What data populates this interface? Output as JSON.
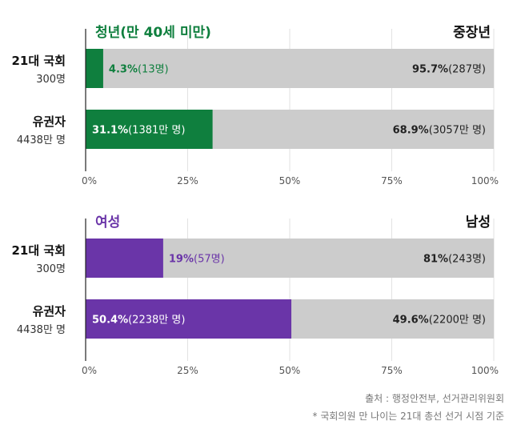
{
  "chart_data": [
    {
      "type": "bar",
      "orientation": "horizontal",
      "stacked": true,
      "colors": {
        "left": "#0f7f3e",
        "right": "#cccccc",
        "left_label": "#0f7f3e",
        "right_label": "#222222"
      },
      "series_names": [
        "청년(만 40세 미만)",
        "중장년"
      ],
      "categories": [
        {
          "title": "21대 국회",
          "sub": "300명",
          "left": {
            "value": 4.3,
            "pct_text": "4.3%",
            "count_text": "(13명)"
          },
          "right": {
            "value": 95.7,
            "pct_text": "95.7%",
            "count_text": "(287명)"
          }
        },
        {
          "title": "유권자",
          "sub": "4438만 명",
          "left": {
            "value": 31.1,
            "pct_text": "31.1%",
            "count_text": "(1381만 명)"
          },
          "right": {
            "value": 68.9,
            "pct_text": "68.9%",
            "count_text": "(3057만 명)"
          }
        }
      ],
      "xlim": [
        0,
        100
      ],
      "ticks": [
        "0%",
        "25%",
        "50%",
        "75%",
        "100%"
      ],
      "grid": true
    },
    {
      "type": "bar",
      "orientation": "horizontal",
      "stacked": true,
      "colors": {
        "left": "#6a35a8",
        "right": "#cccccc",
        "left_label": "#6a35a8",
        "right_label": "#222222"
      },
      "series_names": [
        "여성",
        "남성"
      ],
      "categories": [
        {
          "title": "21대 국회",
          "sub": "300명",
          "left": {
            "value": 19,
            "pct_text": "19%",
            "count_text": "(57명)"
          },
          "right": {
            "value": 81,
            "pct_text": "81%",
            "count_text": "(243명)"
          }
        },
        {
          "title": "유권자",
          "sub": "4438만 명",
          "left": {
            "value": 50.4,
            "pct_text": "50.4%",
            "count_text": "(2238만 명)"
          },
          "right": {
            "value": 49.6,
            "pct_text": "49.6%",
            "count_text": "(2200만 명)"
          }
        }
      ],
      "xlim": [
        0,
        100
      ],
      "ticks": [
        "0%",
        "25%",
        "50%",
        "75%",
        "100%"
      ],
      "grid": true
    }
  ],
  "footnotes": [
    "출처 : 행정안전부, 선거관리위원회",
    "* 국회의원 만 나이는 21대 총선 선거 시점 기준"
  ]
}
